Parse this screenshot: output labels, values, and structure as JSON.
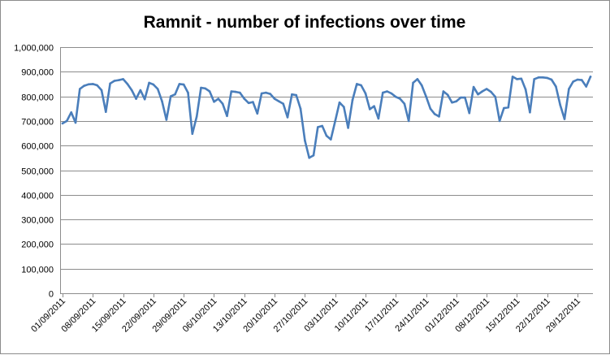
{
  "chart_data": {
    "type": "line",
    "title": "Ramnit - number of infections over time",
    "xlabel": "",
    "ylabel": "",
    "ylim": [
      0,
      1000000
    ],
    "yticks": [
      0,
      100000,
      200000,
      300000,
      400000,
      500000,
      600000,
      700000,
      800000,
      900000,
      1000000
    ],
    "ytick_labels": [
      "0",
      "100,000",
      "200,000",
      "300,000",
      "400,000",
      "500,000",
      "600,000",
      "700,000",
      "800,000",
      "900,000",
      "1,000,000"
    ],
    "xtick_labels": [
      "01/09/2011",
      "08/09/2011",
      "15/09/2011",
      "22/09/2011",
      "29/09/2011",
      "06/10/2011",
      "13/10/2011",
      "20/10/2011",
      "27/10/2011",
      "03/11/2011",
      "10/11/2011",
      "17/11/2011",
      "24/11/2011",
      "01/12/2011",
      "08/12/2011",
      "15/12/2011",
      "22/12/2011",
      "29/12/2011"
    ],
    "grid": true,
    "legend": "none",
    "color": "#4a7ebb",
    "x": [
      "01/09/2011",
      "02/09/2011",
      "03/09/2011",
      "04/09/2011",
      "05/09/2011",
      "06/09/2011",
      "07/09/2011",
      "08/09/2011",
      "09/09/2011",
      "10/09/2011",
      "11/09/2011",
      "12/09/2011",
      "13/09/2011",
      "14/09/2011",
      "15/09/2011",
      "16/09/2011",
      "17/09/2011",
      "18/09/2011",
      "19/09/2011",
      "20/09/2011",
      "21/09/2011",
      "22/09/2011",
      "23/09/2011",
      "24/09/2011",
      "25/09/2011",
      "26/09/2011",
      "27/09/2011",
      "28/09/2011",
      "29/09/2011",
      "30/09/2011",
      "01/10/2011",
      "02/10/2011",
      "03/10/2011",
      "04/10/2011",
      "05/10/2011",
      "06/10/2011",
      "07/10/2011",
      "08/10/2011",
      "09/10/2011",
      "10/10/2011",
      "11/10/2011",
      "12/10/2011",
      "13/10/2011",
      "14/10/2011",
      "15/10/2011",
      "16/10/2011",
      "17/10/2011",
      "18/10/2011",
      "19/10/2011",
      "20/10/2011",
      "21/10/2011",
      "22/10/2011",
      "23/10/2011",
      "24/10/2011",
      "25/10/2011",
      "26/10/2011",
      "27/10/2011",
      "28/10/2011",
      "29/10/2011",
      "30/10/2011",
      "31/10/2011",
      "01/11/2011",
      "02/11/2011",
      "03/11/2011",
      "04/11/2011",
      "05/11/2011",
      "06/11/2011",
      "07/11/2011",
      "08/11/2011",
      "09/11/2011",
      "10/11/2011",
      "11/11/2011",
      "12/11/2011",
      "13/11/2011",
      "14/11/2011",
      "15/11/2011",
      "16/11/2011",
      "17/11/2011",
      "18/11/2011",
      "19/11/2011",
      "20/11/2011",
      "21/11/2011",
      "22/11/2011",
      "23/11/2011",
      "24/11/2011",
      "25/11/2011",
      "26/11/2011",
      "27/11/2011",
      "28/11/2011",
      "29/11/2011",
      "30/11/2011",
      "01/12/2011",
      "02/12/2011",
      "03/12/2011",
      "04/12/2011",
      "05/12/2011",
      "06/12/2011",
      "07/12/2011",
      "08/12/2011",
      "09/12/2011",
      "10/12/2011",
      "11/12/2011",
      "12/12/2011",
      "13/12/2011",
      "14/12/2011",
      "15/12/2011",
      "16/12/2011",
      "17/12/2011",
      "18/12/2011",
      "19/12/2011",
      "20/12/2011",
      "21/12/2011",
      "22/12/2011",
      "23/12/2011",
      "24/12/2011",
      "25/12/2011",
      "26/12/2011",
      "27/12/2011",
      "28/12/2011",
      "29/12/2011",
      "30/12/2011",
      "31/12/2011",
      "01/01/2012"
    ],
    "values": [
      690000,
      700000,
      735000,
      693000,
      830000,
      843000,
      849000,
      850000,
      845000,
      825000,
      737000,
      852000,
      863000,
      866000,
      870000,
      850000,
      825000,
      790000,
      825000,
      788000,
      855000,
      848000,
      830000,
      780000,
      705000,
      800000,
      808000,
      850000,
      848000,
      815000,
      648000,
      718000,
      835000,
      832000,
      820000,
      778000,
      790000,
      770000,
      720000,
      820000,
      818000,
      815000,
      790000,
      773000,
      777000,
      730000,
      812000,
      815000,
      810000,
      790000,
      780000,
      770000,
      715000,
      808000,
      805000,
      750000,
      620000,
      550000,
      560000,
      675000,
      680000,
      640000,
      625000,
      700000,
      775000,
      757000,
      672000,
      785000,
      850000,
      845000,
      812000,
      748000,
      760000,
      710000,
      815000,
      820000,
      812000,
      798000,
      790000,
      770000,
      700000,
      855000,
      870000,
      845000,
      800000,
      750000,
      728000,
      718000,
      820000,
      806000,
      775000,
      780000,
      795000,
      795000,
      732000,
      838000,
      808000,
      820000,
      830000,
      818000,
      798000,
      700000,
      752000,
      755000,
      880000,
      870000,
      872000,
      828000,
      735000,
      870000,
      877000,
      877000,
      875000,
      868000,
      840000,
      765000,
      708000,
      830000,
      860000,
      868000,
      866000,
      840000,
      880000
    ]
  }
}
